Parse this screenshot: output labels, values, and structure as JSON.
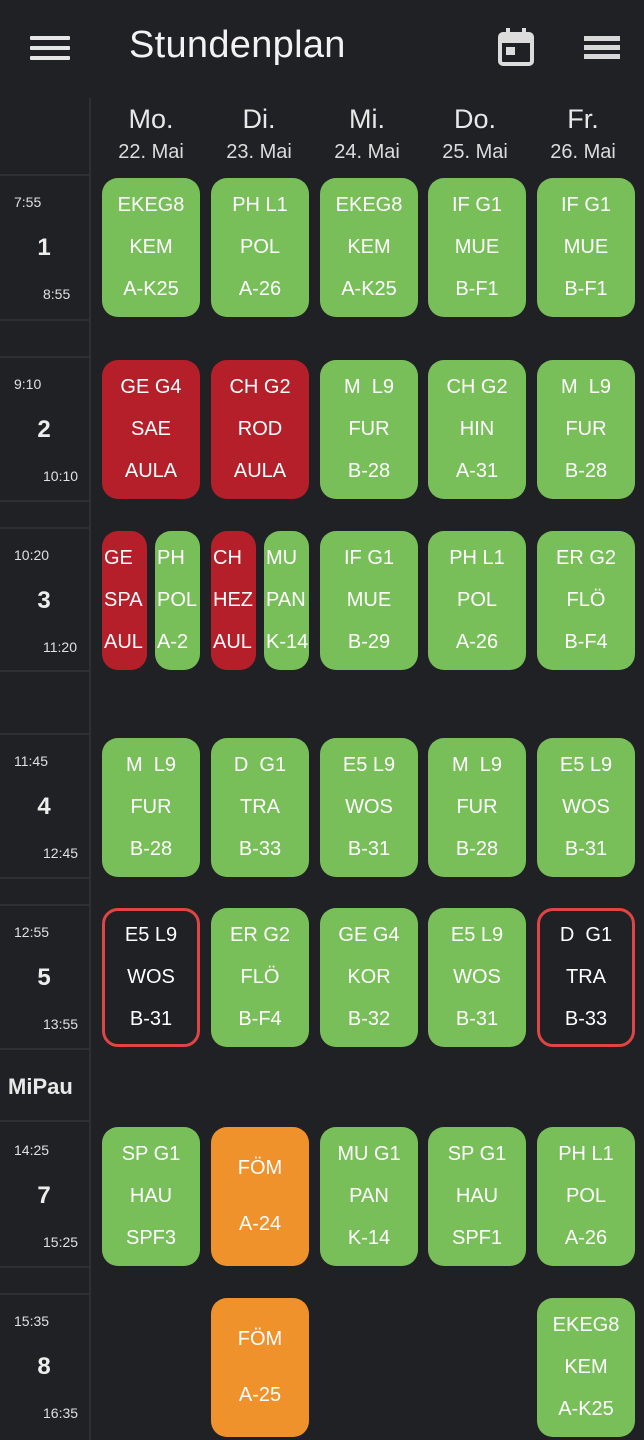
{
  "app": {
    "title": "Stundenplan",
    "icons": [
      "menu-icon",
      "calendar-icon",
      "view-list-icon"
    ]
  },
  "colors": {
    "background": "#202124",
    "normal": "#78bf5a",
    "cancelled": "#b41f2a",
    "special": "#f0922b",
    "changed_border": "#e04444"
  },
  "days": [
    {
      "name": "Mo.",
      "date": "22. Mai"
    },
    {
      "name": "Di.",
      "date": "23. Mai"
    },
    {
      "name": "Mi.",
      "date": "24. Mai"
    },
    {
      "name": "Do.",
      "date": "25. Mai"
    },
    {
      "name": "Fr.",
      "date": "26. Mai"
    }
  ],
  "periods": [
    {
      "number": "1",
      "start": "7:55",
      "end": "8:55"
    },
    {
      "number": "2",
      "start": "9:10",
      "end": "10:10"
    },
    {
      "number": "3",
      "start": "10:20",
      "end": "11:20"
    },
    {
      "number": "4",
      "start": "11:45",
      "end": "12:45"
    },
    {
      "number": "5",
      "start": "12:55",
      "end": "13:55"
    },
    {
      "number": "7",
      "start": "14:25",
      "end": "15:25"
    },
    {
      "number": "8",
      "start": "15:35",
      "end": "16:35"
    }
  ],
  "break_label": "MiPau",
  "lessons": [
    {
      "id": "p1-mo",
      "status": "normal",
      "lines": [
        "EKEG8",
        "KEM",
        "A-K25"
      ]
    },
    {
      "id": "p1-di",
      "status": "normal",
      "lines": [
        "PH L1",
        "POL",
        "A-26"
      ]
    },
    {
      "id": "p1-mi",
      "status": "normal",
      "lines": [
        "EKEG8",
        "KEM",
        "A-K25"
      ]
    },
    {
      "id": "p1-do",
      "status": "normal",
      "lines": [
        "IF G1",
        "MUE",
        "B-F1"
      ]
    },
    {
      "id": "p1-fr",
      "status": "normal",
      "lines": [
        "IF G1",
        "MUE",
        "B-F1"
      ]
    },
    {
      "id": "p2-mo",
      "status": "cancelled",
      "lines": [
        "GE G4",
        "SAE",
        "AULA"
      ]
    },
    {
      "id": "p2-di",
      "status": "cancelled",
      "lines": [
        "CH G2",
        "ROD",
        "AULA"
      ]
    },
    {
      "id": "p2-mi",
      "status": "normal",
      "lines": [
        "M  L9",
        "FUR",
        "B-28"
      ]
    },
    {
      "id": "p2-do",
      "status": "normal",
      "lines": [
        "CH G2",
        "HIN",
        "A-31"
      ]
    },
    {
      "id": "p2-fr",
      "status": "normal",
      "lines": [
        "M  L9",
        "FUR",
        "B-28"
      ]
    },
    {
      "id": "p3-mo-a",
      "status": "cancelled",
      "lines": [
        "GE",
        "SPA",
        "AUL"
      ]
    },
    {
      "id": "p3-mo-b",
      "status": "normal",
      "lines": [
        "PH",
        "POL",
        "A-2"
      ]
    },
    {
      "id": "p3-di-a",
      "status": "cancelled",
      "lines": [
        "CH",
        "HEZ",
        "AUL"
      ]
    },
    {
      "id": "p3-di-b",
      "status": "normal",
      "lines": [
        "MU",
        "PAN",
        "K-14"
      ]
    },
    {
      "id": "p3-mi",
      "status": "normal",
      "lines": [
        "IF G1",
        "MUE",
        "B-29"
      ]
    },
    {
      "id": "p3-do",
      "status": "normal",
      "lines": [
        "PH L1",
        "POL",
        "A-26"
      ]
    },
    {
      "id": "p3-fr",
      "status": "normal",
      "lines": [
        "ER G2",
        "FLÖ",
        "B-F4"
      ]
    },
    {
      "id": "p4-mo",
      "status": "normal",
      "lines": [
        "M  L9",
        "FUR",
        "B-28"
      ]
    },
    {
      "id": "p4-di",
      "status": "normal",
      "lines": [
        "D  G1",
        "TRA",
        "B-33"
      ]
    },
    {
      "id": "p4-mi",
      "status": "normal",
      "lines": [
        "E5 L9",
        "WOS",
        "B-31"
      ]
    },
    {
      "id": "p4-do",
      "status": "normal",
      "lines": [
        "M  L9",
        "FUR",
        "B-28"
      ]
    },
    {
      "id": "p4-fr",
      "status": "normal",
      "lines": [
        "E5 L9",
        "WOS",
        "B-31"
      ]
    },
    {
      "id": "p5-mo",
      "status": "changed",
      "lines": [
        "E5 L9",
        "WOS",
        "B-31"
      ]
    },
    {
      "id": "p5-di",
      "status": "normal",
      "lines": [
        "ER G2",
        "FLÖ",
        "B-F4"
      ]
    },
    {
      "id": "p5-mi",
      "status": "normal",
      "lines": [
        "GE G4",
        "KOR",
        "B-32"
      ]
    },
    {
      "id": "p5-do",
      "status": "normal",
      "lines": [
        "E5 L9",
        "WOS",
        "B-31"
      ]
    },
    {
      "id": "p5-fr",
      "status": "changed",
      "lines": [
        "D  G1",
        "TRA",
        "B-33"
      ]
    },
    {
      "id": "p7-mo",
      "status": "normal",
      "lines": [
        "SP G1",
        "HAU",
        "SPF3"
      ]
    },
    {
      "id": "p7-di",
      "status": "special",
      "lines": [
        "FÖM",
        "A-24"
      ]
    },
    {
      "id": "p7-mi",
      "status": "normal",
      "lines": [
        "MU G1",
        "PAN",
        "K-14"
      ]
    },
    {
      "id": "p7-do",
      "status": "normal",
      "lines": [
        "SP G1",
        "HAU",
        "SPF1"
      ]
    },
    {
      "id": "p7-fr",
      "status": "normal",
      "lines": [
        "PH L1",
        "POL",
        "A-26"
      ]
    },
    {
      "id": "p8-di",
      "status": "special",
      "lines": [
        "FÖM",
        "A-25"
      ]
    },
    {
      "id": "p8-fr",
      "status": "normal",
      "lines": [
        "EKEG8",
        "KEM",
        "A-K25"
      ]
    }
  ]
}
